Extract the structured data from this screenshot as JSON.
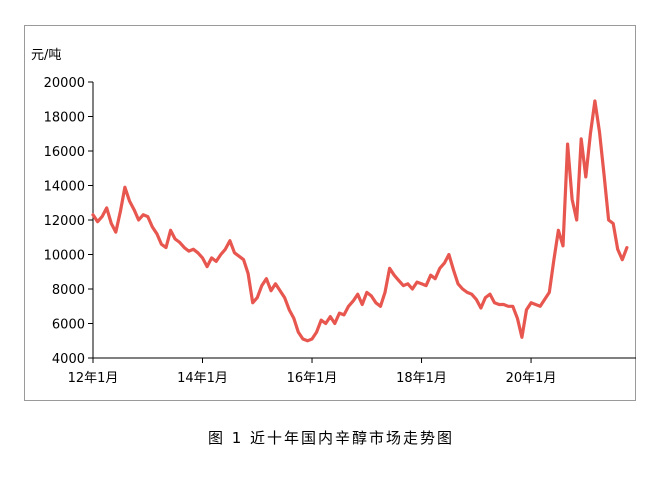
{
  "figure": {
    "caption": "图 1  近十年国内辛醇市场走势图"
  },
  "chart_data": {
    "type": "line",
    "title": "",
    "ylabel": "元/吨",
    "xlabel": "",
    "ylim": [
      4000,
      20000
    ],
    "yticks": [
      4000,
      6000,
      8000,
      10000,
      12000,
      14000,
      16000,
      18000,
      20000
    ],
    "xlim": [
      "2012-01",
      "2021-12"
    ],
    "xticks": [
      {
        "date": "2012-01",
        "label": "12年1月"
      },
      {
        "date": "2014-01",
        "label": "14年1月"
      },
      {
        "date": "2016-01",
        "label": "16年1月"
      },
      {
        "date": "2018-01",
        "label": "18年1月"
      },
      {
        "date": "2020-01",
        "label": "20年1月"
      }
    ],
    "grid": false,
    "legend": "none",
    "line_color": "#e8574f",
    "series": [
      {
        "name": "",
        "points": [
          [
            "2012-01",
            12300
          ],
          [
            "2012-02",
            11900
          ],
          [
            "2012-03",
            12200
          ],
          [
            "2012-04",
            12700
          ],
          [
            "2012-05",
            11800
          ],
          [
            "2012-06",
            11300
          ],
          [
            "2012-07",
            12500
          ],
          [
            "2012-08",
            13900
          ],
          [
            "2012-09",
            13100
          ],
          [
            "2012-10",
            12600
          ],
          [
            "2012-11",
            12000
          ],
          [
            "2012-12",
            12300
          ],
          [
            "2013-01",
            12200
          ],
          [
            "2013-02",
            11600
          ],
          [
            "2013-03",
            11200
          ],
          [
            "2013-04",
            10600
          ],
          [
            "2013-05",
            10400
          ],
          [
            "2013-06",
            11400
          ],
          [
            "2013-07",
            10900
          ],
          [
            "2013-08",
            10700
          ],
          [
            "2013-09",
            10400
          ],
          [
            "2013-10",
            10200
          ],
          [
            "2013-11",
            10300
          ],
          [
            "2013-12",
            10100
          ],
          [
            "2014-01",
            9800
          ],
          [
            "2014-02",
            9300
          ],
          [
            "2014-03",
            9800
          ],
          [
            "2014-04",
            9600
          ],
          [
            "2014-05",
            10000
          ],
          [
            "2014-06",
            10300
          ],
          [
            "2014-07",
            10800
          ],
          [
            "2014-08",
            10100
          ],
          [
            "2014-09",
            9900
          ],
          [
            "2014-10",
            9700
          ],
          [
            "2014-11",
            8900
          ],
          [
            "2014-12",
            7200
          ],
          [
            "2015-01",
            7500
          ],
          [
            "2015-02",
            8200
          ],
          [
            "2015-03",
            8600
          ],
          [
            "2015-04",
            7900
          ],
          [
            "2015-05",
            8300
          ],
          [
            "2015-06",
            7900
          ],
          [
            "2015-07",
            7500
          ],
          [
            "2015-08",
            6800
          ],
          [
            "2015-09",
            6300
          ],
          [
            "2015-10",
            5500
          ],
          [
            "2015-11",
            5100
          ],
          [
            "2015-12",
            5000
          ],
          [
            "2016-01",
            5100
          ],
          [
            "2016-02",
            5500
          ],
          [
            "2016-03",
            6200
          ],
          [
            "2016-04",
            6000
          ],
          [
            "2016-05",
            6400
          ],
          [
            "2016-06",
            6000
          ],
          [
            "2016-07",
            6600
          ],
          [
            "2016-08",
            6500
          ],
          [
            "2016-09",
            7000
          ],
          [
            "2016-10",
            7300
          ],
          [
            "2016-11",
            7700
          ],
          [
            "2016-12",
            7100
          ],
          [
            "2017-01",
            7800
          ],
          [
            "2017-02",
            7600
          ],
          [
            "2017-03",
            7200
          ],
          [
            "2017-04",
            7000
          ],
          [
            "2017-05",
            7800
          ],
          [
            "2017-06",
            9200
          ],
          [
            "2017-07",
            8800
          ],
          [
            "2017-08",
            8500
          ],
          [
            "2017-09",
            8200
          ],
          [
            "2017-10",
            8300
          ],
          [
            "2017-11",
            8000
          ],
          [
            "2017-12",
            8400
          ],
          [
            "2018-01",
            8300
          ],
          [
            "2018-02",
            8200
          ],
          [
            "2018-03",
            8800
          ],
          [
            "2018-04",
            8600
          ],
          [
            "2018-05",
            9200
          ],
          [
            "2018-06",
            9500
          ],
          [
            "2018-07",
            10000
          ],
          [
            "2018-08",
            9100
          ],
          [
            "2018-09",
            8300
          ],
          [
            "2018-10",
            8000
          ],
          [
            "2018-11",
            7800
          ],
          [
            "2018-12",
            7700
          ],
          [
            "2019-01",
            7400
          ],
          [
            "2019-02",
            6900
          ],
          [
            "2019-03",
            7500
          ],
          [
            "2019-04",
            7700
          ],
          [
            "2019-05",
            7200
          ],
          [
            "2019-06",
            7100
          ],
          [
            "2019-07",
            7100
          ],
          [
            "2019-08",
            7000
          ],
          [
            "2019-09",
            7000
          ],
          [
            "2019-10",
            6300
          ],
          [
            "2019-11",
            5200
          ],
          [
            "2019-12",
            6800
          ],
          [
            "2020-01",
            7200
          ],
          [
            "2020-02",
            7100
          ],
          [
            "2020-03",
            7000
          ],
          [
            "2020-04",
            7400
          ],
          [
            "2020-05",
            7800
          ],
          [
            "2020-06",
            9700
          ],
          [
            "2020-07",
            11400
          ],
          [
            "2020-08",
            10500
          ],
          [
            "2020-09",
            16400
          ],
          [
            "2020-10",
            13200
          ],
          [
            "2020-11",
            12000
          ],
          [
            "2020-12",
            16700
          ],
          [
            "2021-01",
            14500
          ],
          [
            "2021-02",
            17000
          ],
          [
            "2021-03",
            18900
          ],
          [
            "2021-04",
            17100
          ],
          [
            "2021-05",
            14600
          ],
          [
            "2021-06",
            12000
          ],
          [
            "2021-07",
            11800
          ],
          [
            "2021-08",
            10300
          ],
          [
            "2021-09",
            9700
          ],
          [
            "2021-10",
            10400
          ]
        ]
      }
    ]
  }
}
